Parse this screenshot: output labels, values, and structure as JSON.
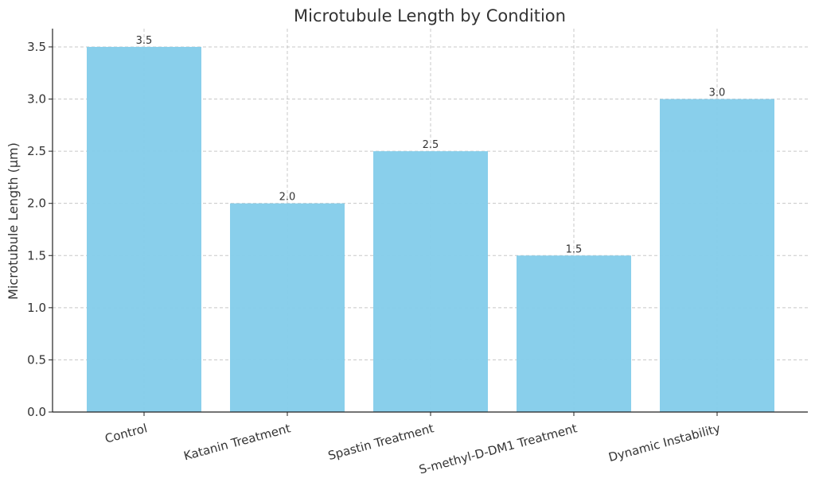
{
  "chart_data": {
    "type": "bar",
    "title": "Microtubule Length by Condition",
    "xlabel": "",
    "ylabel": "Microtubule Length (µm)",
    "categories": [
      "Control",
      "Katanin Treatment",
      "Spastin Treatment",
      "S-methyl-D-DM1 Treatment",
      "Dynamic Instability"
    ],
    "values": [
      3.5,
      2.0,
      2.5,
      1.5,
      3.0
    ],
    "value_labels": [
      "3.5",
      "2.0",
      "2.5",
      "1.5",
      "3.0"
    ],
    "ylim": [
      0,
      3.675
    ],
    "yticks": [
      0.0,
      0.5,
      1.0,
      1.5,
      2.0,
      2.5,
      3.0,
      3.5
    ],
    "ytick_labels": [
      "0.0",
      "0.5",
      "1.0",
      "1.5",
      "2.0",
      "2.5",
      "3.0",
      "3.5"
    ],
    "grid": true,
    "legend": "none",
    "colors": {
      "bar": "#87ceeb",
      "grid": "#c8c8c8",
      "axis": "#222222",
      "text": "#333333"
    }
  }
}
